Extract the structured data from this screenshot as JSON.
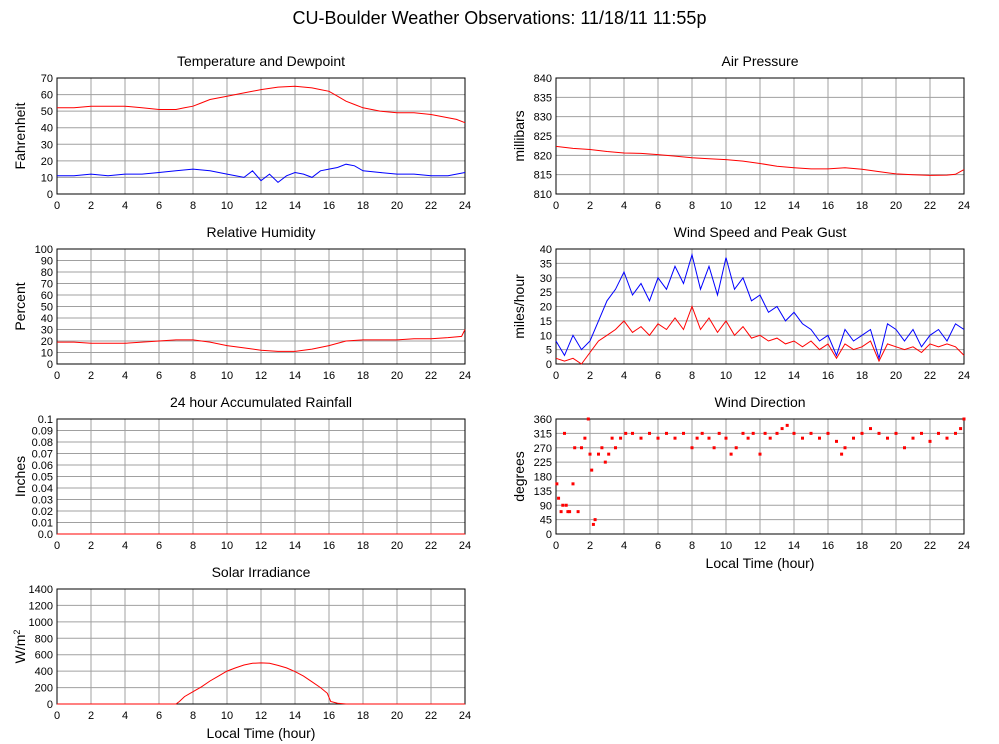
{
  "page": {
    "title": "CU-Boulder Weather Observations: 11/18/11 11:55p"
  },
  "colors": {
    "series_red": "#ff0000",
    "series_blue": "#0000ff",
    "grid": "#a0a0a0",
    "frame": "#000000"
  },
  "chart_data": [
    {
      "id": "temp",
      "type": "line",
      "title": "Temperature and Dewpoint",
      "xlabel": "",
      "ylabel": "Fahrenheit",
      "xlim": [
        0,
        24
      ],
      "ylim": [
        0,
        70
      ],
      "xticks": [
        0,
        2,
        4,
        6,
        8,
        10,
        12,
        14,
        16,
        18,
        20,
        22,
        24
      ],
      "yticks": [
        0,
        10,
        20,
        30,
        40,
        50,
        60,
        70
      ],
      "grid": true,
      "series": [
        {
          "color": "#ff0000",
          "x": [
            0,
            1,
            2,
            3,
            4,
            5,
            6,
            7,
            7.5,
            8,
            8.5,
            9,
            10,
            11,
            12,
            13,
            14,
            15,
            15.5,
            16,
            16.5,
            17,
            17.5,
            18,
            19,
            20,
            21,
            22,
            22.5,
            23,
            23.5,
            24
          ],
          "y": [
            52,
            52,
            53,
            53,
            53,
            52,
            51,
            51,
            52,
            53,
            55,
            57,
            59,
            61,
            63,
            64.5,
            65,
            64,
            63,
            62,
            59,
            56,
            54,
            52,
            50,
            49,
            49,
            48,
            47,
            46,
            45,
            43
          ]
        },
        {
          "color": "#0000ff",
          "x": [
            0,
            1,
            2,
            3,
            4,
            5,
            6,
            7,
            8,
            9,
            10,
            10.5,
            11,
            11.5,
            12,
            12.5,
            13,
            13.5,
            14,
            14.5,
            15,
            15.5,
            16,
            16.5,
            17,
            17.5,
            18,
            19,
            20,
            21,
            22,
            23,
            24
          ],
          "y": [
            11,
            11,
            12,
            11,
            12,
            12,
            13,
            14,
            15,
            14,
            12,
            11,
            10,
            14,
            8,
            12,
            7,
            11,
            13,
            12,
            10,
            14,
            15,
            16,
            18,
            17,
            14,
            13,
            12,
            12,
            11,
            11,
            13
          ]
        }
      ]
    },
    {
      "id": "pressure",
      "type": "line",
      "title": "Air Pressure",
      "xlabel": "",
      "ylabel": "millibars",
      "xlim": [
        0,
        24
      ],
      "ylim": [
        810,
        840
      ],
      "xticks": [
        0,
        2,
        4,
        6,
        8,
        10,
        12,
        14,
        16,
        18,
        20,
        22,
        24
      ],
      "yticks": [
        810,
        815,
        820,
        825,
        830,
        835,
        840
      ],
      "grid": true,
      "series": [
        {
          "color": "#ff0000",
          "x": [
            0,
            1,
            2,
            3,
            4,
            5,
            6,
            7,
            8,
            9,
            10,
            11,
            12,
            13,
            14,
            15,
            16,
            17,
            18,
            19,
            20,
            21,
            22,
            23,
            23.5,
            24
          ],
          "y": [
            822.3,
            821.8,
            821.5,
            821,
            820.6,
            820.5,
            820.2,
            819.8,
            819.4,
            819.1,
            818.9,
            818.5,
            817.9,
            817.2,
            816.8,
            816.5,
            816.5,
            816.8,
            816.4,
            815.8,
            815.2,
            815,
            814.8,
            814.9,
            815.1,
            816.3
          ]
        }
      ]
    },
    {
      "id": "humidity",
      "type": "line",
      "title": "Relative Humidity",
      "xlabel": "",
      "ylabel": "Percent",
      "xlim": [
        0,
        24
      ],
      "ylim": [
        0,
        100
      ],
      "xticks": [
        0,
        2,
        4,
        6,
        8,
        10,
        12,
        14,
        16,
        18,
        20,
        22,
        24
      ],
      "yticks": [
        0,
        10,
        20,
        30,
        40,
        50,
        60,
        70,
        80,
        90,
        100
      ],
      "grid": true,
      "series": [
        {
          "color": "#ff0000",
          "x": [
            0,
            1,
            2,
            3,
            4,
            5,
            6,
            7,
            8,
            9,
            10,
            11,
            12,
            13,
            14,
            15,
            16,
            17,
            18,
            19,
            20,
            21,
            22,
            23,
            23.8,
            24
          ],
          "y": [
            19,
            19,
            18,
            18,
            18,
            19,
            20,
            21,
            21,
            19,
            16,
            14,
            12,
            11,
            11,
            13,
            16,
            20,
            21,
            21,
            21,
            22,
            22,
            23,
            24,
            30
          ]
        }
      ]
    },
    {
      "id": "wind",
      "type": "line",
      "title": "Wind Speed and Peak Gust",
      "xlabel": "",
      "ylabel": "miles/hour",
      "xlim": [
        0,
        24
      ],
      "ylim": [
        0,
        40
      ],
      "xticks": [
        0,
        2,
        4,
        6,
        8,
        10,
        12,
        14,
        16,
        18,
        20,
        22,
        24
      ],
      "yticks": [
        0,
        5,
        10,
        15,
        20,
        25,
        30,
        35,
        40
      ],
      "grid": true,
      "series": [
        {
          "color": "#0000ff",
          "x": [
            0,
            0.5,
            1,
            1.5,
            2,
            2.5,
            3,
            3.5,
            4,
            4.5,
            5,
            5.5,
            6,
            6.5,
            7,
            7.5,
            8,
            8.5,
            9,
            9.5,
            10,
            10.5,
            11,
            11.5,
            12,
            12.5,
            13,
            13.5,
            14,
            14.5,
            15,
            15.5,
            16,
            16.5,
            17,
            17.5,
            18,
            18.5,
            19,
            19.5,
            20,
            20.5,
            21,
            21.5,
            22,
            22.5,
            23,
            23.5,
            24
          ],
          "y": [
            8,
            3,
            10,
            5,
            8,
            15,
            22,
            26,
            32,
            24,
            28,
            22,
            30,
            26,
            34,
            28,
            38,
            26,
            34,
            24,
            37,
            26,
            30,
            22,
            24,
            18,
            20,
            15,
            18,
            14,
            12,
            8,
            10,
            3,
            12,
            8,
            10,
            12,
            2,
            14,
            12,
            8,
            12,
            6,
            10,
            12,
            8,
            14,
            12
          ]
        },
        {
          "color": "#ff0000",
          "x": [
            0,
            0.5,
            1,
            1.5,
            2,
            2.5,
            3,
            3.5,
            4,
            4.5,
            5,
            5.5,
            6,
            6.5,
            7,
            7.5,
            8,
            8.5,
            9,
            9.5,
            10,
            10.5,
            11,
            11.5,
            12,
            12.5,
            13,
            13.5,
            14,
            14.5,
            15,
            15.5,
            16,
            16.5,
            17,
            17.5,
            18,
            18.5,
            19,
            19.5,
            20,
            20.5,
            21,
            21.5,
            22,
            22.5,
            23,
            23.5,
            24
          ],
          "y": [
            2,
            1,
            2,
            0,
            4,
            8,
            10,
            12,
            15,
            11,
            13,
            10,
            14,
            12,
            16,
            12,
            20,
            12,
            16,
            11,
            15,
            10,
            13,
            9,
            10,
            8,
            9,
            7,
            8,
            6,
            8,
            5,
            7,
            2,
            7,
            5,
            6,
            8,
            1,
            7,
            6,
            5,
            6,
            4,
            7,
            6,
            7,
            6,
            3
          ]
        }
      ]
    },
    {
      "id": "rainfall",
      "type": "line",
      "title": "24 hour Accumulated Rainfall",
      "xlabel": "",
      "ylabel": "Inches",
      "xlim": [
        0,
        24
      ],
      "ylim": [
        0,
        0.1
      ],
      "xticks": [
        0,
        2,
        4,
        6,
        8,
        10,
        12,
        14,
        16,
        18,
        20,
        22,
        24
      ],
      "yticks": [
        0,
        0.01,
        0.02,
        0.03,
        0.04,
        0.05,
        0.06,
        0.07,
        0.08,
        0.09,
        0.1
      ],
      "ytick_labels": [
        "0.0",
        "0.01",
        "0.02",
        "0.03",
        "0.04",
        "0.05",
        "0.06",
        "0.07",
        "0.08",
        "0.09",
        "0.1"
      ],
      "grid": true,
      "series": [
        {
          "color": "#ff0000",
          "x": [
            0,
            24
          ],
          "y": [
            0,
            0
          ]
        }
      ]
    },
    {
      "id": "direction",
      "type": "scatter",
      "title": "Wind Direction",
      "xlabel": "Local Time (hour)",
      "ylabel": "degrees",
      "xlim": [
        0,
        24
      ],
      "ylim": [
        0,
        360
      ],
      "xticks": [
        0,
        2,
        4,
        6,
        8,
        10,
        12,
        14,
        16,
        18,
        20,
        22,
        24
      ],
      "yticks": [
        0,
        45,
        90,
        135,
        180,
        225,
        270,
        315,
        360
      ],
      "grid": true,
      "series": [
        {
          "color": "#ff0000",
          "x": [
            0.05,
            0.15,
            0.3,
            0.4,
            0.5,
            0.6,
            0.7,
            0.8,
            1.0,
            1.1,
            1.3,
            1.5,
            1.7,
            1.9,
            2.0,
            2.1,
            2.2,
            2.3,
            2.5,
            2.7,
            2.9,
            3.1,
            3.3,
            3.5,
            3.8,
            4.1,
            4.5,
            5.0,
            5.5,
            6.0,
            6.5,
            7.0,
            7.5,
            8.0,
            8.3,
            8.6,
            9.0,
            9.3,
            9.6,
            10.0,
            10.3,
            10.6,
            11.0,
            11.3,
            11.6,
            12.0,
            12.3,
            12.6,
            13.0,
            13.3,
            13.6,
            14.0,
            14.5,
            15.0,
            15.5,
            16.0,
            16.5,
            16.8,
            17.0,
            17.5,
            18.0,
            18.5,
            19.0,
            19.5,
            20.0,
            20.5,
            21.0,
            21.5,
            22.0,
            22.5,
            23.0,
            23.5,
            23.8,
            24.0
          ],
          "y": [
            157,
            112,
            70,
            90,
            315,
            90,
            70,
            70,
            157,
            270,
            70,
            270,
            300,
            360,
            250,
            200,
            30,
            45,
            250,
            270,
            225,
            250,
            300,
            270,
            300,
            315,
            315,
            300,
            315,
            300,
            315,
            300,
            315,
            270,
            300,
            315,
            300,
            270,
            315,
            300,
            250,
            270,
            315,
            300,
            315,
            250,
            315,
            300,
            315,
            330,
            340,
            315,
            300,
            315,
            300,
            315,
            290,
            250,
            270,
            300,
            315,
            330,
            315,
            300,
            315,
            270,
            300,
            315,
            290,
            315,
            300,
            315,
            330,
            360
          ]
        }
      ]
    },
    {
      "id": "solar",
      "type": "line",
      "title": "Solar Irradiance",
      "xlabel": "Local Time (hour)",
      "ylabel": "W/m2",
      "xlim": [
        0,
        24
      ],
      "ylim": [
        0,
        1400
      ],
      "xticks": [
        0,
        2,
        4,
        6,
        8,
        10,
        12,
        14,
        16,
        18,
        20,
        22,
        24
      ],
      "yticks": [
        0,
        200,
        400,
        600,
        800,
        1000,
        1200,
        1400
      ],
      "grid": true,
      "series": [
        {
          "color": "#ff0000",
          "x": [
            0,
            7,
            7.2,
            7.5,
            8,
            8.5,
            9,
            9.5,
            10,
            10.5,
            11,
            11.5,
            12,
            12.5,
            13,
            13.5,
            14,
            14.5,
            15,
            15.5,
            15.9,
            16.1,
            16.5,
            17,
            24
          ],
          "y": [
            0,
            0,
            30,
            90,
            150,
            210,
            280,
            340,
            400,
            440,
            475,
            495,
            500,
            495,
            470,
            440,
            395,
            340,
            270,
            200,
            130,
            30,
            10,
            0,
            0
          ]
        }
      ]
    }
  ]
}
